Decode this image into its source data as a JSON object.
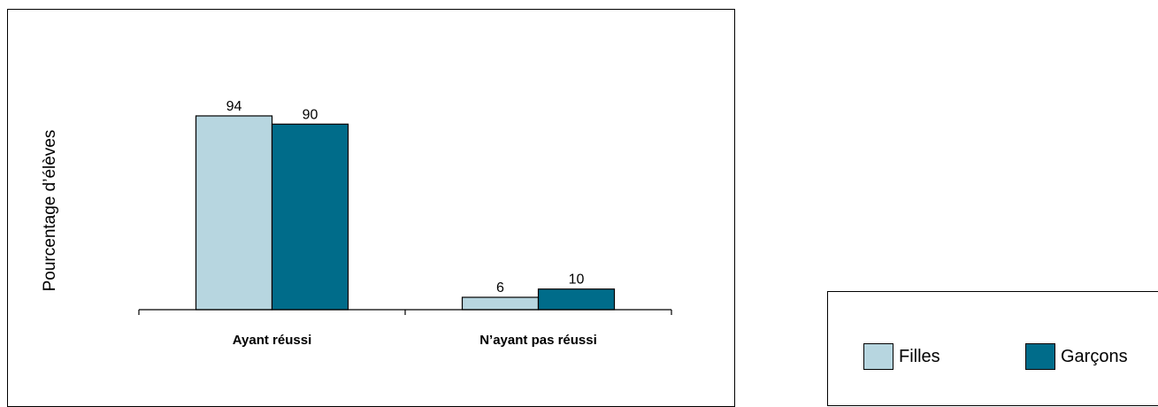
{
  "chart_data": {
    "type": "bar",
    "title": "",
    "xlabel": "",
    "ylabel": "Pourcentage d’élèves",
    "categories": [
      "Ayant réussi",
      "N’ayant pas réussi"
    ],
    "series": [
      {
        "name": "Filles",
        "values": [
          94,
          6
        ],
        "color": "#b7d6e0"
      },
      {
        "name": "Garçons",
        "values": [
          90,
          10
        ],
        "color": "#006c8a"
      }
    ],
    "ylim": [
      0,
      100
    ],
    "grid": false,
    "legend_position": "bottom-right"
  }
}
